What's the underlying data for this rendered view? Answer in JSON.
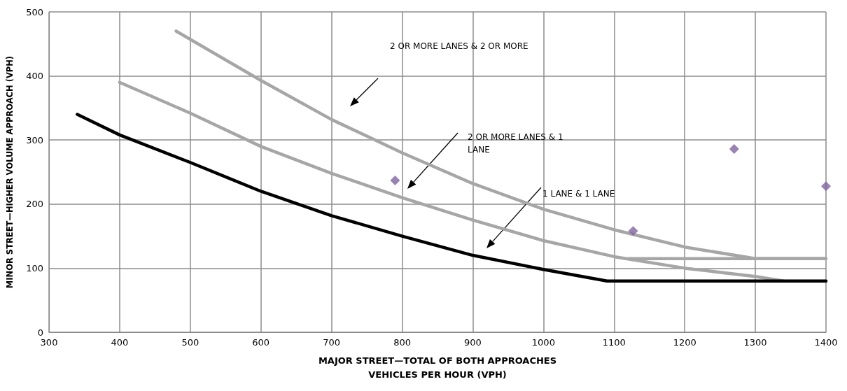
{
  "chart_data": {
    "type": "line",
    "xlabel": "MAJOR STREET—TOTAL OF BOTH APPROACHES\nVEHICLES PER HOUR (VPH)",
    "ylabel": "MINOR STREET—HIGHER VOLUME APPROACH (VPH)",
    "xlim": [
      300,
      1400
    ],
    "xticks": [
      300,
      400,
      500,
      600,
      700,
      800,
      900,
      1000,
      1100,
      1200,
      1300,
      1400
    ],
    "ylim": [
      0,
      500
    ],
    "yticks": [
      0,
      100,
      200,
      300,
      400,
      500
    ],
    "grid": true,
    "series": [
      {
        "color": "#a6a6a6",
        "marker": "none",
        "x": [
          480,
          600,
          700,
          800,
          900,
          1000,
          1100,
          1200,
          1300,
          1400
        ],
        "values": [
          470,
          393,
          332,
          280,
          232,
          192,
          160,
          133,
          115,
          115
        ]
      },
      {
        "color": "#a6a6a6",
        "marker": "none",
        "x": [
          400,
          500,
          600,
          700,
          800,
          900,
          1000,
          1100,
          1200,
          1300,
          1340
        ],
        "values": [
          390,
          342,
          290,
          248,
          210,
          175,
          143,
          118,
          100,
          87,
          80
        ]
      },
      {
        "color": "#a6a6a6",
        "marker": "none",
        "x": [
          1120,
          1400
        ],
        "values": [
          115,
          115
        ]
      },
      {
        "color": "#000000",
        "marker": "none",
        "x": [
          340,
          400,
          500,
          600,
          700,
          800,
          900,
          1000,
          1090,
          1400
        ],
        "values": [
          340,
          308,
          265,
          220,
          182,
          150,
          120,
          98,
          80,
          80
        ]
      },
      {
        "type": "scatter",
        "color": "#8064a2",
        "marker": "diamond",
        "x": [
          790,
          1127,
          1270,
          1400
        ],
        "values": [
          237,
          158,
          286,
          228
        ]
      }
    ],
    "annotations": [
      "2 OR MORE LANES & 2 OR MORE",
      "2 OR MORE LANES & 1 LANE",
      "1 LANE & 1 LANE"
    ]
  }
}
